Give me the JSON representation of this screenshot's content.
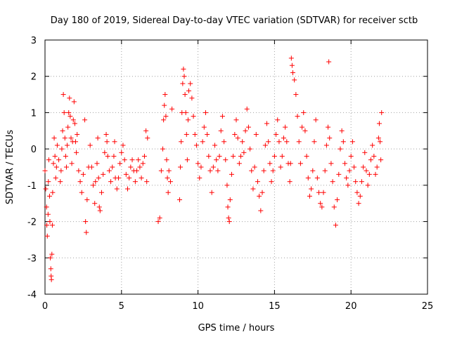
{
  "chart_data": {
    "type": "scatter",
    "title": "Day 180 of 2019, Sidereal Day-to-day VTEC variation (SDTVAR) for receiver sctb",
    "xlabel": "GPS time / hours",
    "ylabel": "SDTVAR / TECUs",
    "xlim": [
      0,
      25
    ],
    "ylim": [
      -4,
      3
    ],
    "xticks": [
      "0",
      "5",
      "10",
      "15",
      "20",
      "25"
    ],
    "yticks": [
      "-4",
      "-3",
      "-2",
      "-1",
      "0",
      "1",
      "2",
      "3"
    ],
    "marker": "+",
    "color": "#ff0000",
    "grid": true,
    "series": [
      {
        "name": "SDTVAR",
        "points": [
          [
            0.0,
            -0.6
          ],
          [
            0.05,
            -1.1
          ],
          [
            0.1,
            -1.6
          ],
          [
            0.12,
            -2.1
          ],
          [
            0.15,
            -2.4
          ],
          [
            0.2,
            -1.8
          ],
          [
            0.22,
            -0.9
          ],
          [
            0.25,
            -0.3
          ],
          [
            0.3,
            -1.3
          ],
          [
            0.32,
            -2.0
          ],
          [
            0.35,
            -3.0
          ],
          [
            0.38,
            -3.3
          ],
          [
            0.4,
            -3.5
          ],
          [
            0.42,
            -3.6
          ],
          [
            0.45,
            -2.9
          ],
          [
            0.48,
            -2.1
          ],
          [
            0.5,
            -1.2
          ],
          [
            0.55,
            -0.4
          ],
          [
            0.6,
            0.3
          ],
          [
            0.65,
            -0.2
          ],
          [
            0.7,
            -0.8
          ],
          [
            0.75,
            -0.5
          ],
          [
            0.8,
            0.1
          ],
          [
            0.9,
            -0.3
          ],
          [
            1.0,
            -0.9
          ],
          [
            1.05,
            -0.6
          ],
          [
            1.1,
            0.0
          ],
          [
            1.15,
            0.5
          ],
          [
            1.2,
            1.5
          ],
          [
            1.25,
            1.0
          ],
          [
            1.3,
            0.3
          ],
          [
            1.35,
            -0.2
          ],
          [
            1.4,
            -0.5
          ],
          [
            1.45,
            0.1
          ],
          [
            1.5,
            0.6
          ],
          [
            1.55,
            1.0
          ],
          [
            1.6,
            1.4
          ],
          [
            1.65,
            0.9
          ],
          [
            1.7,
            0.3
          ],
          [
            1.75,
            -0.4
          ],
          [
            1.8,
            0.2
          ],
          [
            1.85,
            0.8
          ],
          [
            1.9,
            1.3
          ],
          [
            1.95,
            0.7
          ],
          [
            2.0,
            0.2
          ],
          [
            2.05,
            -0.1
          ],
          [
            2.1,
            0.4
          ],
          [
            2.2,
            -0.6
          ],
          [
            2.3,
            -0.9
          ],
          [
            2.4,
            -1.2
          ],
          [
            2.5,
            -0.7
          ],
          [
            2.6,
            0.8
          ],
          [
            2.65,
            -2.0
          ],
          [
            2.7,
            -2.3
          ],
          [
            2.75,
            -1.4
          ],
          [
            2.85,
            -0.5
          ],
          [
            2.95,
            0.1
          ],
          [
            3.05,
            -0.5
          ],
          [
            3.15,
            -1.0
          ],
          [
            3.25,
            -1.5
          ],
          [
            3.3,
            -0.9
          ],
          [
            3.4,
            -0.4
          ],
          [
            3.45,
            0.3
          ],
          [
            3.5,
            -0.8
          ],
          [
            3.55,
            -1.6
          ],
          [
            3.6,
            -1.7
          ],
          [
            3.7,
            -1.2
          ],
          [
            3.8,
            -0.7
          ],
          [
            3.9,
            -0.1
          ],
          [
            4.0,
            0.4
          ],
          [
            4.05,
            0.2
          ],
          [
            4.1,
            -0.2
          ],
          [
            4.2,
            -0.6
          ],
          [
            4.3,
            -0.9
          ],
          [
            4.4,
            -0.5
          ],
          [
            4.5,
            -0.2
          ],
          [
            4.55,
            0.2
          ],
          [
            4.6,
            -0.8
          ],
          [
            4.7,
            -1.1
          ],
          [
            4.8,
            -0.8
          ],
          [
            4.9,
            -0.4
          ],
          [
            5.0,
            -0.1
          ],
          [
            5.1,
            0.1
          ],
          [
            5.2,
            -0.3
          ],
          [
            5.3,
            -0.7
          ],
          [
            5.4,
            -1.1
          ],
          [
            5.5,
            -0.8
          ],
          [
            5.6,
            -0.5
          ],
          [
            5.7,
            -0.3
          ],
          [
            5.8,
            -0.6
          ],
          [
            5.9,
            -0.9
          ],
          [
            6.0,
            -0.6
          ],
          [
            6.1,
            -0.3
          ],
          [
            6.2,
            -0.5
          ],
          [
            6.3,
            -0.8
          ],
          [
            6.4,
            -0.4
          ],
          [
            6.5,
            -0.2
          ],
          [
            6.6,
            0.5
          ],
          [
            6.65,
            -0.9
          ],
          [
            6.7,
            0.3
          ],
          [
            7.4,
            -2.0
          ],
          [
            7.5,
            -1.9
          ],
          [
            7.6,
            -0.6
          ],
          [
            7.7,
            0.0
          ],
          [
            7.75,
            0.8
          ],
          [
            7.8,
            1.2
          ],
          [
            7.85,
            1.5
          ],
          [
            7.9,
            0.9
          ],
          [
            7.95,
            -0.3
          ],
          [
            8.0,
            -0.8
          ],
          [
            8.05,
            -1.2
          ],
          [
            8.1,
            -0.6
          ],
          [
            8.2,
            -0.9
          ],
          [
            8.3,
            1.1
          ],
          [
            8.8,
            -1.4
          ],
          [
            8.85,
            -0.5
          ],
          [
            8.9,
            0.2
          ],
          [
            8.95,
            1.0
          ],
          [
            9.0,
            1.8
          ],
          [
            9.05,
            2.2
          ],
          [
            9.1,
            2.0
          ],
          [
            9.15,
            1.5
          ],
          [
            9.2,
            1.0
          ],
          [
            9.25,
            0.4
          ],
          [
            9.3,
            -0.3
          ],
          [
            9.35,
            0.8
          ],
          [
            9.4,
            1.6
          ],
          [
            9.5,
            1.8
          ],
          [
            9.6,
            1.4
          ],
          [
            9.7,
            0.9
          ],
          [
            9.8,
            0.4
          ],
          [
            9.9,
            0.1
          ],
          [
            10.0,
            -0.4
          ],
          [
            10.1,
            -0.8
          ],
          [
            10.2,
            -0.5
          ],
          [
            10.3,
            0.2
          ],
          [
            10.4,
            0.6
          ],
          [
            10.5,
            1.0
          ],
          [
            10.6,
            0.4
          ],
          [
            10.7,
            -0.2
          ],
          [
            10.8,
            -0.6
          ],
          [
            10.9,
            -1.2
          ],
          [
            11.0,
            -0.5
          ],
          [
            11.1,
            0.1
          ],
          [
            11.2,
            -0.3
          ],
          [
            11.3,
            -0.6
          ],
          [
            11.4,
            -0.2
          ],
          [
            11.5,
            0.5
          ],
          [
            11.6,
            0.9
          ],
          [
            11.7,
            0.2
          ],
          [
            11.8,
            -0.3
          ],
          [
            11.9,
            -1.0
          ],
          [
            11.95,
            -1.6
          ],
          [
            12.0,
            -1.9
          ],
          [
            12.05,
            -2.0
          ],
          [
            12.1,
            -1.4
          ],
          [
            12.2,
            -0.7
          ],
          [
            12.3,
            -0.2
          ],
          [
            12.4,
            0.4
          ],
          [
            12.5,
            0.8
          ],
          [
            12.6,
            0.3
          ],
          [
            12.7,
            -0.4
          ],
          [
            12.8,
            -0.2
          ],
          [
            12.9,
            0.2
          ],
          [
            13.0,
            -0.1
          ],
          [
            13.1,
            0.5
          ],
          [
            13.2,
            1.1
          ],
          [
            13.3,
            0.6
          ],
          [
            13.4,
            0.0
          ],
          [
            13.5,
            -0.6
          ],
          [
            13.6,
            -1.1
          ],
          [
            13.7,
            -0.5
          ],
          [
            13.8,
            0.4
          ],
          [
            13.9,
            -0.9
          ],
          [
            14.0,
            -1.3
          ],
          [
            14.1,
            -1.7
          ],
          [
            14.2,
            -1.2
          ],
          [
            14.3,
            -0.6
          ],
          [
            14.4,
            0.1
          ],
          [
            14.5,
            0.7
          ],
          [
            14.6,
            0.2
          ],
          [
            14.7,
            -0.4
          ],
          [
            14.8,
            -0.9
          ],
          [
            14.9,
            -0.6
          ],
          [
            15.0,
            -0.2
          ],
          [
            15.1,
            0.4
          ],
          [
            15.2,
            0.8
          ],
          [
            15.3,
            0.2
          ],
          [
            15.4,
            -0.5
          ],
          [
            15.5,
            -0.2
          ],
          [
            15.6,
            0.3
          ],
          [
            15.7,
            0.6
          ],
          [
            15.8,
            0.2
          ],
          [
            15.9,
            -0.4
          ],
          [
            16.0,
            -0.9
          ],
          [
            16.05,
            -0.4
          ],
          [
            16.1,
            2.5
          ],
          [
            16.15,
            2.3
          ],
          [
            16.2,
            2.1
          ],
          [
            16.3,
            1.9
          ],
          [
            16.4,
            1.5
          ],
          [
            16.5,
            0.9
          ],
          [
            16.6,
            0.2
          ],
          [
            16.7,
            -0.4
          ],
          [
            16.8,
            0.6
          ],
          [
            16.9,
            1.0
          ],
          [
            17.0,
            0.5
          ],
          [
            17.1,
            -0.2
          ],
          [
            17.2,
            -0.8
          ],
          [
            17.3,
            -1.3
          ],
          [
            17.4,
            -1.1
          ],
          [
            17.5,
            -0.6
          ],
          [
            17.6,
            0.2
          ],
          [
            17.7,
            0.8
          ],
          [
            17.8,
            -0.8
          ],
          [
            17.9,
            -1.2
          ],
          [
            18.0,
            -1.5
          ],
          [
            18.1,
            -1.6
          ],
          [
            18.2,
            -1.2
          ],
          [
            18.3,
            -0.6
          ],
          [
            18.4,
            0.1
          ],
          [
            18.5,
            0.6
          ],
          [
            18.55,
            2.4
          ],
          [
            18.6,
            0.3
          ],
          [
            18.7,
            -0.4
          ],
          [
            18.8,
            -0.9
          ],
          [
            18.9,
            -1.6
          ],
          [
            19.0,
            -2.1
          ],
          [
            19.1,
            -1.4
          ],
          [
            19.2,
            -0.7
          ],
          [
            19.3,
            0.0
          ],
          [
            19.4,
            0.5
          ],
          [
            19.5,
            0.2
          ],
          [
            19.6,
            -0.4
          ],
          [
            19.7,
            -0.8
          ],
          [
            19.8,
            -1.0
          ],
          [
            19.9,
            -0.6
          ],
          [
            20.0,
            -0.2
          ],
          [
            20.1,
            0.2
          ],
          [
            20.2,
            -0.5
          ],
          [
            20.3,
            -0.9
          ],
          [
            20.4,
            -1.2
          ],
          [
            20.5,
            -1.5
          ],
          [
            20.6,
            -1.3
          ],
          [
            20.7,
            -0.9
          ],
          [
            20.8,
            -0.5
          ],
          [
            20.9,
            -0.1
          ],
          [
            21.0,
            -0.6
          ],
          [
            21.1,
            -1.0
          ],
          [
            21.2,
            -0.7
          ],
          [
            21.3,
            -0.3
          ],
          [
            21.4,
            0.1
          ],
          [
            21.5,
            -0.2
          ],
          [
            21.6,
            -0.7
          ],
          [
            21.7,
            -0.5
          ],
          [
            21.8,
            0.3
          ],
          [
            21.85,
            0.7
          ],
          [
            21.9,
            0.2
          ],
          [
            21.95,
            -0.3
          ],
          [
            22.0,
            1.0
          ]
        ]
      }
    ]
  }
}
